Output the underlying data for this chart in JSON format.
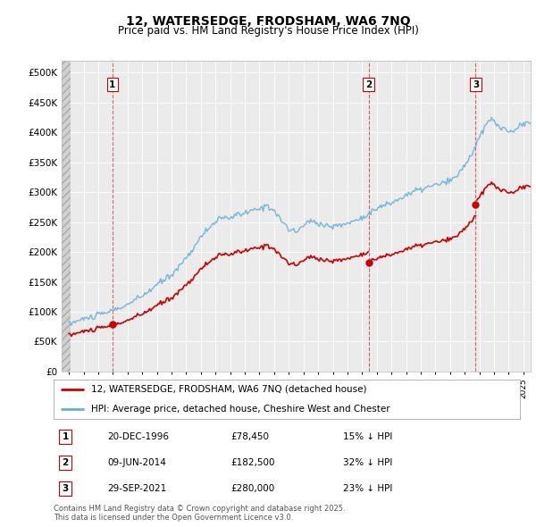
{
  "title1": "12, WATERSEDGE, FRODSHAM, WA6 7NQ",
  "title2": "Price paid vs. HM Land Registry's House Price Index (HPI)",
  "ylabel_ticks": [
    "£0",
    "£50K",
    "£100K",
    "£150K",
    "£200K",
    "£250K",
    "£300K",
    "£350K",
    "£400K",
    "£450K",
    "£500K"
  ],
  "ytick_vals": [
    0,
    50000,
    100000,
    150000,
    200000,
    250000,
    300000,
    350000,
    400000,
    450000,
    500000
  ],
  "xlim": [
    1993.5,
    2025.5
  ],
  "ylim": [
    0,
    520000
  ],
  "purchase_years": [
    1996.97,
    2014.44,
    2021.75
  ],
  "purchase_prices": [
    78450,
    182500,
    280000
  ],
  "purchase_labels": [
    "1",
    "2",
    "3"
  ],
  "legend_line1": "12, WATERSEDGE, FRODSHAM, WA6 7NQ (detached house)",
  "legend_line2": "HPI: Average price, detached house, Cheshire West and Chester",
  "table_rows": [
    [
      "1",
      "20-DEC-1996",
      "£78,450",
      "15% ↓ HPI"
    ],
    [
      "2",
      "09-JUN-2014",
      "£182,500",
      "32% ↓ HPI"
    ],
    [
      "3",
      "29-SEP-2021",
      "£280,000",
      "23% ↓ HPI"
    ]
  ],
  "footer": "Contains HM Land Registry data © Crown copyright and database right 2025.\nThis data is licensed under the Open Government Licence v3.0.",
  "hpi_color": "#6aaed6",
  "price_color": "#cc0000",
  "vline_color": "#cc0000",
  "bg_color": "#ffffff",
  "plot_bg": "#ebebeb",
  "grid_color": "#ffffff"
}
